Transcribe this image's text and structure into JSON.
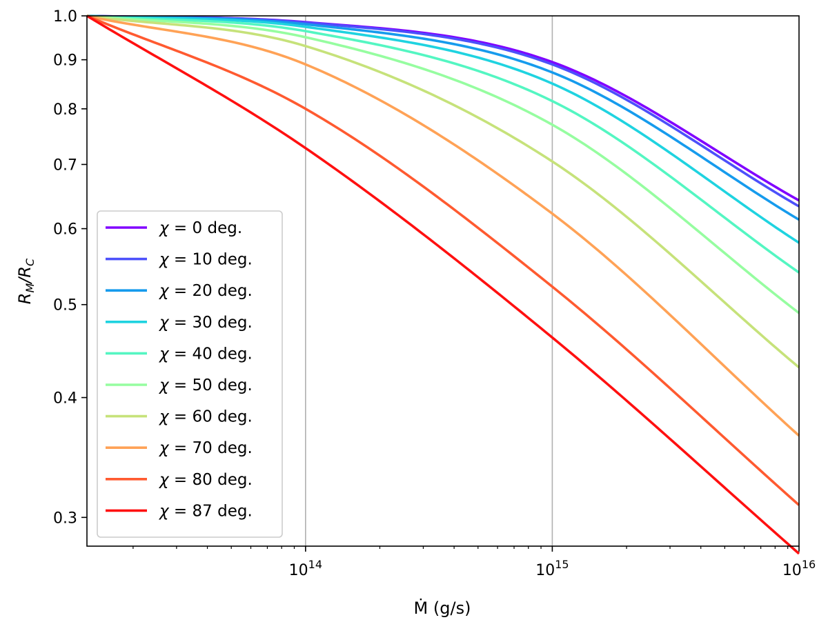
{
  "chart_data": {
    "type": "line",
    "title": "",
    "xlabel": "Ṁ (g/s)",
    "ylabel_main": "R",
    "ylabel_sub1": "M",
    "ylabel_mid": "/R",
    "ylabel_sub2": "C",
    "xscale": "log",
    "yscale": "log",
    "xlim": [
      13000000000000.0,
      1e+16
    ],
    "ylim": [
      0.28,
      1.0
    ],
    "grid": "vertical major lines only",
    "legend_position": "lower-left",
    "x_ticks": [
      {
        "value": 100000000000000.0,
        "base": "10",
        "exp": "14"
      },
      {
        "value": 1000000000000000.0,
        "base": "10",
        "exp": "15"
      },
      {
        "value": 1e+16,
        "base": "10",
        "exp": "16"
      }
    ],
    "y_ticks": [
      {
        "value": 0.3,
        "label": "0.3"
      },
      {
        "value": 0.4,
        "label": "0.4"
      },
      {
        "value": 0.5,
        "label": "0.5"
      },
      {
        "value": 0.6,
        "label": "0.6"
      },
      {
        "value": 0.7,
        "label": "0.7"
      },
      {
        "value": 0.8,
        "label": "0.8"
      },
      {
        "value": 0.9,
        "label": "0.9"
      },
      {
        "value": 1.0,
        "label": "1.0"
      }
    ],
    "x": [
      13000000000000.0,
      100000000000000.0,
      1000000000000000.0,
      1e+16
    ],
    "series": [
      {
        "name": "χ = 0 deg.",
        "chi": "0",
        "color": "#8000ff",
        "values": [
          1.0,
          0.985,
          0.895,
          0.642
        ]
      },
      {
        "name": "χ = 10 deg.",
        "chi": "10",
        "color": "#4c50fb",
        "values": [
          1.0,
          0.984,
          0.89,
          0.633
        ]
      },
      {
        "name": "χ = 20 deg.",
        "chi": "20",
        "color": "#169bed",
        "values": [
          1.0,
          0.98,
          0.873,
          0.613
        ]
      },
      {
        "name": "χ = 30 deg.",
        "chi": "30",
        "color": "#1fd3e0",
        "values": [
          1.0,
          0.974,
          0.85,
          0.58
        ]
      },
      {
        "name": "χ = 40 deg.",
        "chi": "40",
        "color": "#54f6c2",
        "values": [
          1.0,
          0.964,
          0.815,
          0.54
        ]
      },
      {
        "name": "χ = 50 deg.",
        "chi": "50",
        "color": "#96fda0",
        "values": [
          1.0,
          0.95,
          0.77,
          0.49
        ]
      },
      {
        "name": "χ = 60 deg.",
        "chi": "60",
        "color": "#c6e27a",
        "values": [
          1.0,
          0.93,
          0.705,
          0.43
        ]
      },
      {
        "name": "χ = 70 deg.",
        "chi": "70",
        "color": "#ffa256",
        "values": [
          1.0,
          0.89,
          0.622,
          0.365
        ]
      },
      {
        "name": "χ = 80 deg.",
        "chi": "80",
        "color": "#ff5a30",
        "values": [
          1.0,
          0.8,
          0.522,
          0.309
        ]
      },
      {
        "name": "χ = 87 deg.",
        "chi": "87",
        "color": "#ff1010",
        "values": [
          1.0,
          0.728,
          0.462,
          0.275
        ]
      }
    ],
    "legend_suffix": " deg."
  }
}
